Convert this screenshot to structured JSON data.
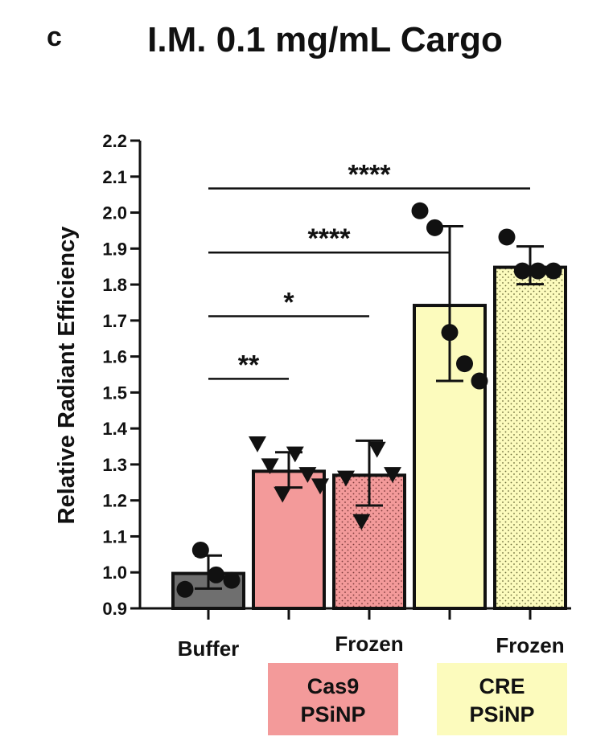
{
  "panel_letter": "c",
  "colors": {
    "buffer": "#6f6f6f",
    "cas9": "#f39a9a",
    "cre": "#fcfbbd",
    "text": "#111111"
  },
  "chart_data": {
    "type": "bar",
    "title": "I.M. 0.1 mg/mL Cargo",
    "ylabel": "Relative Radiant  Efficiency",
    "xlabel": "",
    "ylim": [
      0.9,
      2.2
    ],
    "yticks": [
      "0.9",
      "1.0",
      "1.1",
      "1.2",
      "1.3",
      "1.4",
      "1.5",
      "1.6",
      "1.7",
      "1.8",
      "1.9",
      "2.0",
      "2.1",
      "2.2"
    ],
    "categories": [
      "Buffer",
      "",
      "Frozen",
      "",
      "Frozen"
    ],
    "group_labels": [
      {
        "line1": "Cas9",
        "line2": "PSiNP",
        "color": "#f39a9a"
      },
      {
        "line1": "CRE",
        "line2": "PSiNP",
        "color": "#fcfbbd"
      }
    ],
    "bars": [
      {
        "mean": 0.997,
        "sd_high": 1.047,
        "sd_low": 0.955,
        "fill": "#6f6f6f",
        "pattern": false,
        "marker": "circle",
        "points": [
          0.953,
          1.062,
          0.993,
          0.978
        ]
      },
      {
        "mean": 1.281,
        "sd_high": 1.334,
        "sd_low": 1.236,
        "fill": "#f39a9a",
        "pattern": false,
        "marker": "triangle-down",
        "points": [
          1.357,
          1.296,
          1.217,
          1.329,
          1.272,
          1.24
        ]
      },
      {
        "mean": 1.27,
        "sd_high": 1.366,
        "sd_low": 1.186,
        "fill": "#f39a9a",
        "pattern": true,
        "marker": "triangle-down",
        "points": [
          1.262,
          1.141,
          1.342,
          1.272
        ]
      },
      {
        "mean": 1.742,
        "sd_high": 1.962,
        "sd_low": 1.532,
        "fill": "#fcfbbd",
        "pattern": false,
        "marker": "circle",
        "points": [
          2.005,
          1.958,
          1.667,
          1.58,
          1.532
        ]
      },
      {
        "mean": 1.848,
        "sd_high": 1.906,
        "sd_low": 1.801,
        "fill": "#fcfbbd",
        "pattern": true,
        "marker": "circle",
        "points": [
          1.932,
          1.838,
          1.838,
          1.838
        ]
      }
    ],
    "significance": [
      {
        "from": 0,
        "to": 1,
        "y": 1.538,
        "label": "**"
      },
      {
        "from": 0,
        "to": 2,
        "y": 1.712,
        "label": "*"
      },
      {
        "from": 0,
        "to": 3,
        "y": 1.889,
        "label": "****"
      },
      {
        "from": 0,
        "to": 4,
        "y": 2.067,
        "label": "****"
      }
    ]
  }
}
